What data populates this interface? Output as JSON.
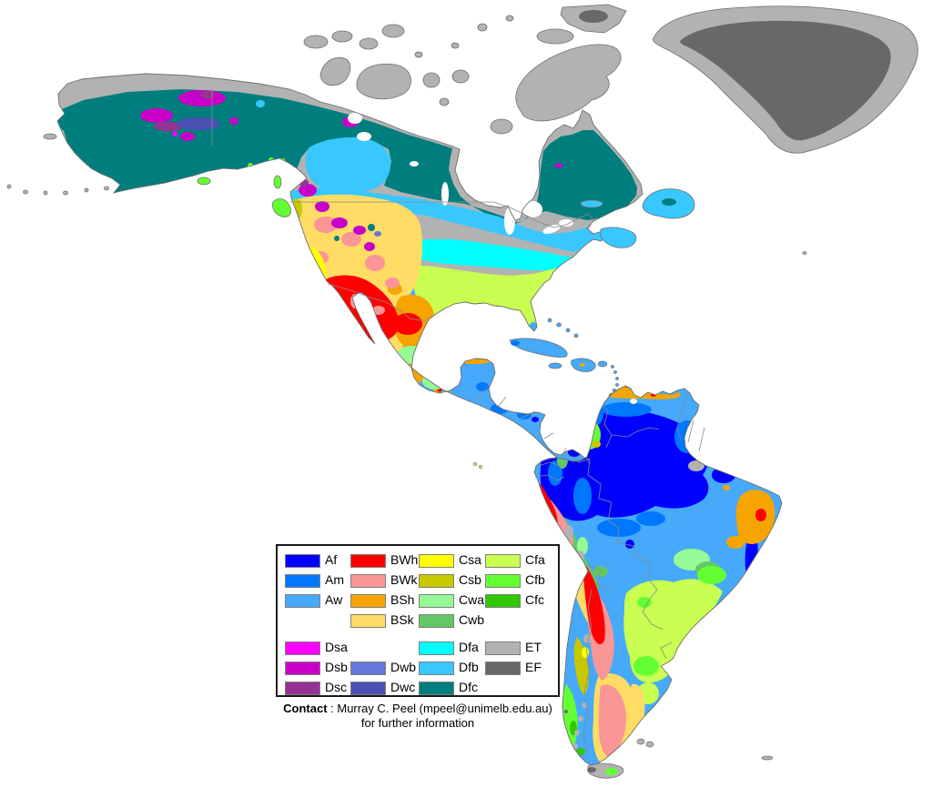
{
  "map": {
    "ocean_color": "#ffffff",
    "coastline_color": "#6e6e6e",
    "border_color": "#8a8a8a",
    "lake_color": "#ffffff",
    "zones": {
      "Af": "#0000fe",
      "Am": "#0077ff",
      "Aw": "#46a9fa",
      "BWh": "#fe0000",
      "BWk": "#fa9696",
      "BSh": "#f5a400",
      "BSk": "#ffdc64",
      "Csa": "#ffff00",
      "Csb": "#c8c800",
      "Cwa": "#96fa96",
      "Cwb": "#63c764",
      "Cfa": "#c8ff50",
      "Cfb": "#64ff33",
      "Cfc": "#32c800",
      "Dsa": "#fe00fe",
      "Dsb": "#c800c8",
      "Dsc": "#963295",
      "Dwb": "#6478dc",
      "Dwc": "#4b50b4",
      "Dfa": "#00ffff",
      "Dfb": "#38c8ff",
      "Dfc": "#007e7e",
      "ET": "#b2b2b2",
      "EF": "#686868"
    }
  },
  "legend": {
    "items": [
      {
        "code": "Af",
        "col": 1,
        "row": 1
      },
      {
        "code": "Am",
        "col": 1,
        "row": 2
      },
      {
        "code": "Aw",
        "col": 1,
        "row": 3
      },
      {
        "code": "Dsa",
        "col": 1,
        "row": 5
      },
      {
        "code": "Dsb",
        "col": 1,
        "row": 6
      },
      {
        "code": "Dsc",
        "col": 1,
        "row": 7
      },
      {
        "code": "BWh",
        "col": 2,
        "row": 1
      },
      {
        "code": "BWk",
        "col": 2,
        "row": 2
      },
      {
        "code": "BSh",
        "col": 2,
        "row": 3
      },
      {
        "code": "BSk",
        "col": 2,
        "row": 4
      },
      {
        "code": "Dwb",
        "col": 2,
        "row": 6
      },
      {
        "code": "Dwc",
        "col": 2,
        "row": 7
      },
      {
        "code": "Csa",
        "col": 3,
        "row": 1
      },
      {
        "code": "Csb",
        "col": 3,
        "row": 2
      },
      {
        "code": "Cwa",
        "col": 3,
        "row": 3
      },
      {
        "code": "Cwb",
        "col": 3,
        "row": 4
      },
      {
        "code": "Dfa",
        "col": 3,
        "row": 5
      },
      {
        "code": "Dfb",
        "col": 3,
        "row": 6
      },
      {
        "code": "Dfc",
        "col": 3,
        "row": 7
      },
      {
        "code": "Cfa",
        "col": 4,
        "row": 1
      },
      {
        "code": "Cfb",
        "col": 4,
        "row": 2
      },
      {
        "code": "Cfc",
        "col": 4,
        "row": 3
      },
      {
        "code": "ET",
        "col": 4,
        "row": 5
      },
      {
        "code": "EF",
        "col": 4,
        "row": 6
      }
    ]
  },
  "contact": {
    "label": "Contact",
    "text": " : Murray C. Peel (mpeel@unimelb.edu.au)",
    "line2": "for further information"
  }
}
